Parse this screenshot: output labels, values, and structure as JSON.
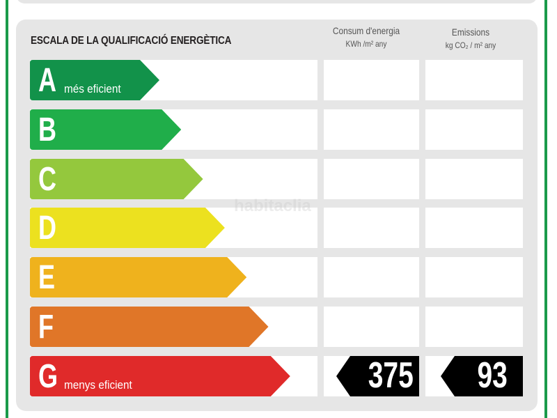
{
  "title": "ESCALA DE LA QUALIFICACIÓ ENERGÈTICA",
  "columns": [
    {
      "label": "Consum d'energia",
      "unit": "KWh /m² any"
    },
    {
      "label": "Emissions",
      "unit": "kg CO₂ / m² any"
    }
  ],
  "classes": [
    {
      "letter": "A",
      "sub": "més eficient",
      "color": "#12924a"
    },
    {
      "letter": "B",
      "sub": "",
      "color": "#20ae4a"
    },
    {
      "letter": "C",
      "sub": "",
      "color": "#94c83d"
    },
    {
      "letter": "D",
      "sub": "",
      "color": "#ece11f"
    },
    {
      "letter": "E",
      "sub": "",
      "color": "#efb21d"
    },
    {
      "letter": "F",
      "sub": "",
      "color": "#e07628"
    },
    {
      "letter": "G",
      "sub": "menys eficient",
      "color": "#e02a2a"
    }
  ],
  "rating": {
    "class": "G",
    "consumption": "375",
    "emissions": "93"
  },
  "watermark": "habitaclia"
}
